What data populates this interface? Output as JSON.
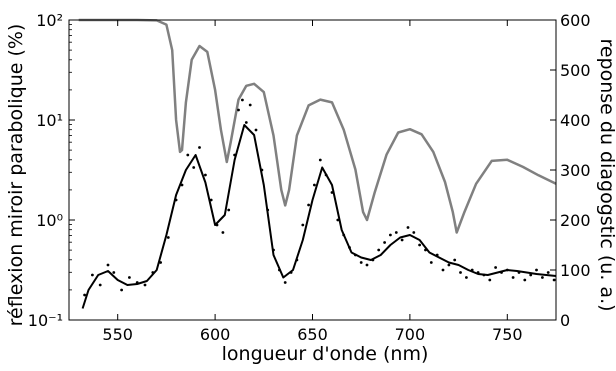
{
  "chart_data": {
    "type": "line",
    "xlabel": "longueur d'onde (nm)",
    "ylabel_left": "réflexion miroir parabolique (%)",
    "ylabel_right": "reponse du diagogstic (u. a.)",
    "xlim": [
      525,
      775
    ],
    "ylim_left": [
      0.1,
      100
    ],
    "yscale_left": "log",
    "ylim_right": [
      0,
      600
    ],
    "x_ticks": [
      "550",
      "600",
      "650",
      "700",
      "750"
    ],
    "y_left_ticks": [
      "10⁻¹",
      "10⁰",
      "10¹",
      "10²"
    ],
    "y_right_ticks": [
      "0",
      "100",
      "200",
      "300",
      "400",
      "500",
      "600"
    ],
    "grid": false,
    "series": [
      {
        "axis": "left",
        "color": "#808080",
        "style": "line",
        "x": [
          530,
          560,
          570,
          575,
          578,
          580,
          582,
          583,
          585,
          588,
          592,
          596,
          600,
          603,
          606,
          608,
          612,
          616,
          620,
          625,
          630,
          634,
          636,
          638,
          642,
          648,
          654,
          660,
          666,
          672,
          676,
          678,
          682,
          688,
          694,
          700,
          706,
          712,
          718,
          722,
          724,
          728,
          734,
          742,
          750,
          758,
          766,
          775
        ],
        "y": [
          100,
          100,
          99,
          90,
          50,
          10,
          4.8,
          5,
          15,
          40,
          55,
          48,
          20,
          8,
          3.8,
          6,
          16,
          22,
          23,
          19,
          7,
          2,
          1.4,
          2,
          7,
          14,
          16,
          15,
          8,
          3.2,
          1.2,
          1.0,
          1.9,
          4.5,
          7.5,
          8.1,
          7.2,
          4.8,
          2.4,
          1.2,
          0.75,
          1.2,
          2.3,
          3.9,
          4.0,
          3.4,
          2.8,
          2.3
        ]
      },
      {
        "axis": "right",
        "color": "#000000",
        "style": "line",
        "x": [
          532,
          535,
          540,
          545,
          550,
          555,
          560,
          565,
          570,
          575,
          580,
          585,
          590,
          595,
          600,
          605,
          610,
          615,
          620,
          625,
          630,
          635,
          640,
          645,
          650,
          655,
          660,
          665,
          670,
          675,
          680,
          685,
          690,
          695,
          700,
          705,
          710,
          715,
          720,
          725,
          730,
          735,
          740,
          745,
          750,
          755,
          760,
          765,
          770,
          775
        ],
        "y": [
          23,
          60,
          90,
          98,
          80,
          70,
          72,
          78,
          100,
          170,
          250,
          300,
          330,
          275,
          190,
          210,
          320,
          390,
          370,
          270,
          130,
          85,
          100,
          160,
          240,
          305,
          270,
          180,
          135,
          125,
          120,
          130,
          150,
          165,
          170,
          160,
          135,
          125,
          115,
          110,
          100,
          92,
          90,
          95,
          100,
          98,
          95,
          92,
          90,
          88
        ]
      },
      {
        "axis": "right",
        "color": "#000000",
        "style": "scatter",
        "x": [
          533,
          537,
          541,
          545,
          548,
          552,
          556,
          560,
          564,
          568,
          572,
          576,
          580,
          583,
          586,
          589,
          592,
          595,
          598,
          601,
          604,
          607,
          610,
          612,
          614,
          616,
          618,
          621,
          624,
          627,
          630,
          633,
          636,
          639,
          642,
          645,
          648,
          651,
          654,
          657,
          660,
          663,
          666,
          669,
          672,
          675,
          678,
          681,
          684,
          687,
          690,
          693,
          696,
          699,
          702,
          705,
          708,
          711,
          714,
          717,
          720,
          723,
          726,
          729,
          732,
          735,
          738,
          741,
          744,
          747,
          750,
          753,
          756,
          759,
          762,
          765,
          768,
          771,
          774
        ],
        "y": [
          50,
          90,
          70,
          110,
          95,
          60,
          85,
          75,
          70,
          95,
          115,
          165,
          240,
          270,
          330,
          305,
          345,
          290,
          240,
          190,
          175,
          220,
          330,
          420,
          440,
          395,
          430,
          380,
          300,
          220,
          140,
          100,
          75,
          95,
          120,
          190,
          230,
          270,
          320,
          290,
          255,
          200,
          170,
          145,
          130,
          115,
          110,
          120,
          140,
          155,
          170,
          175,
          160,
          185,
          175,
          150,
          140,
          115,
          130,
          100,
          110,
          120,
          95,
          85,
          100,
          95,
          90,
          80,
          105,
          95,
          100,
          85,
          95,
          80,
          90,
          100,
          85,
          95,
          80
        ]
      }
    ]
  }
}
